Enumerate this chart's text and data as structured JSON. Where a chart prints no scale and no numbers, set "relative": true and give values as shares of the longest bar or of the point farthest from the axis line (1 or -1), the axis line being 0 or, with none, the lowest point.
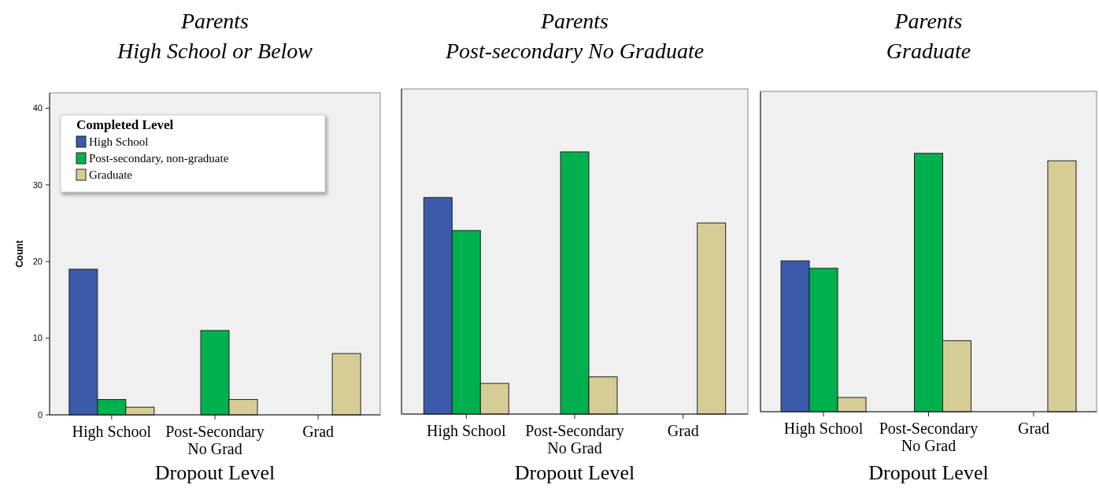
{
  "chart_data": [
    {
      "type": "bar",
      "title": "Parents",
      "subtitle": "High School or Below",
      "xlabel": "Dropout Level",
      "ylabel": "Count",
      "categories": [
        "High School",
        "Post-Secondary No Grad",
        "Grad"
      ],
      "legend_title": "Completed Level",
      "legend": "top left",
      "grid": false,
      "ylim": [
        0,
        42
      ],
      "yticks": [
        0,
        10,
        20,
        30,
        40
      ],
      "series": [
        {
          "name": "High School",
          "color": "#3a5baa",
          "values": [
            19,
            0,
            0
          ]
        },
        {
          "name": "Post-secondary, non-graduate",
          "color": "#00b04f",
          "values": [
            2,
            11,
            0
          ]
        },
        {
          "name": "Graduate",
          "color": "#d5cd95",
          "values": [
            1,
            2,
            8
          ]
        }
      ]
    },
    {
      "type": "bar",
      "title": "Parents",
      "subtitle": "Post-secondary No Graduate",
      "xlabel": "Dropout Level",
      "categories": [
        "High School",
        "Post-Secondary No Grad",
        "Grad"
      ],
      "relative": true,
      "legend": false,
      "grid": false,
      "series": [
        {
          "color": "#3a5baa",
          "values": [
            0.826,
            0,
            0
          ]
        },
        {
          "color": "#00b04f",
          "values": [
            0.7,
            1,
            0
          ]
        },
        {
          "color": "#d5cd95",
          "values": [
            0.117,
            0.142,
            0.729
          ]
        }
      ]
    },
    {
      "type": "bar",
      "title": "Parents",
      "subtitle": "Graduate",
      "xlabel": "Dropout Level",
      "categories": [
        "High School",
        "Post-Secondary No Grad",
        "Grad"
      ],
      "relative": true,
      "legend": false,
      "grid": false,
      "series": [
        {
          "color": "#3a5baa",
          "values": [
            0.584,
            0,
            0
          ]
        },
        {
          "color": "#00b04f",
          "values": [
            0.555,
            1,
            0
          ]
        },
        {
          "color": "#d5cd95",
          "values": [
            0.055,
            0.275,
            0.971
          ]
        }
      ]
    }
  ]
}
